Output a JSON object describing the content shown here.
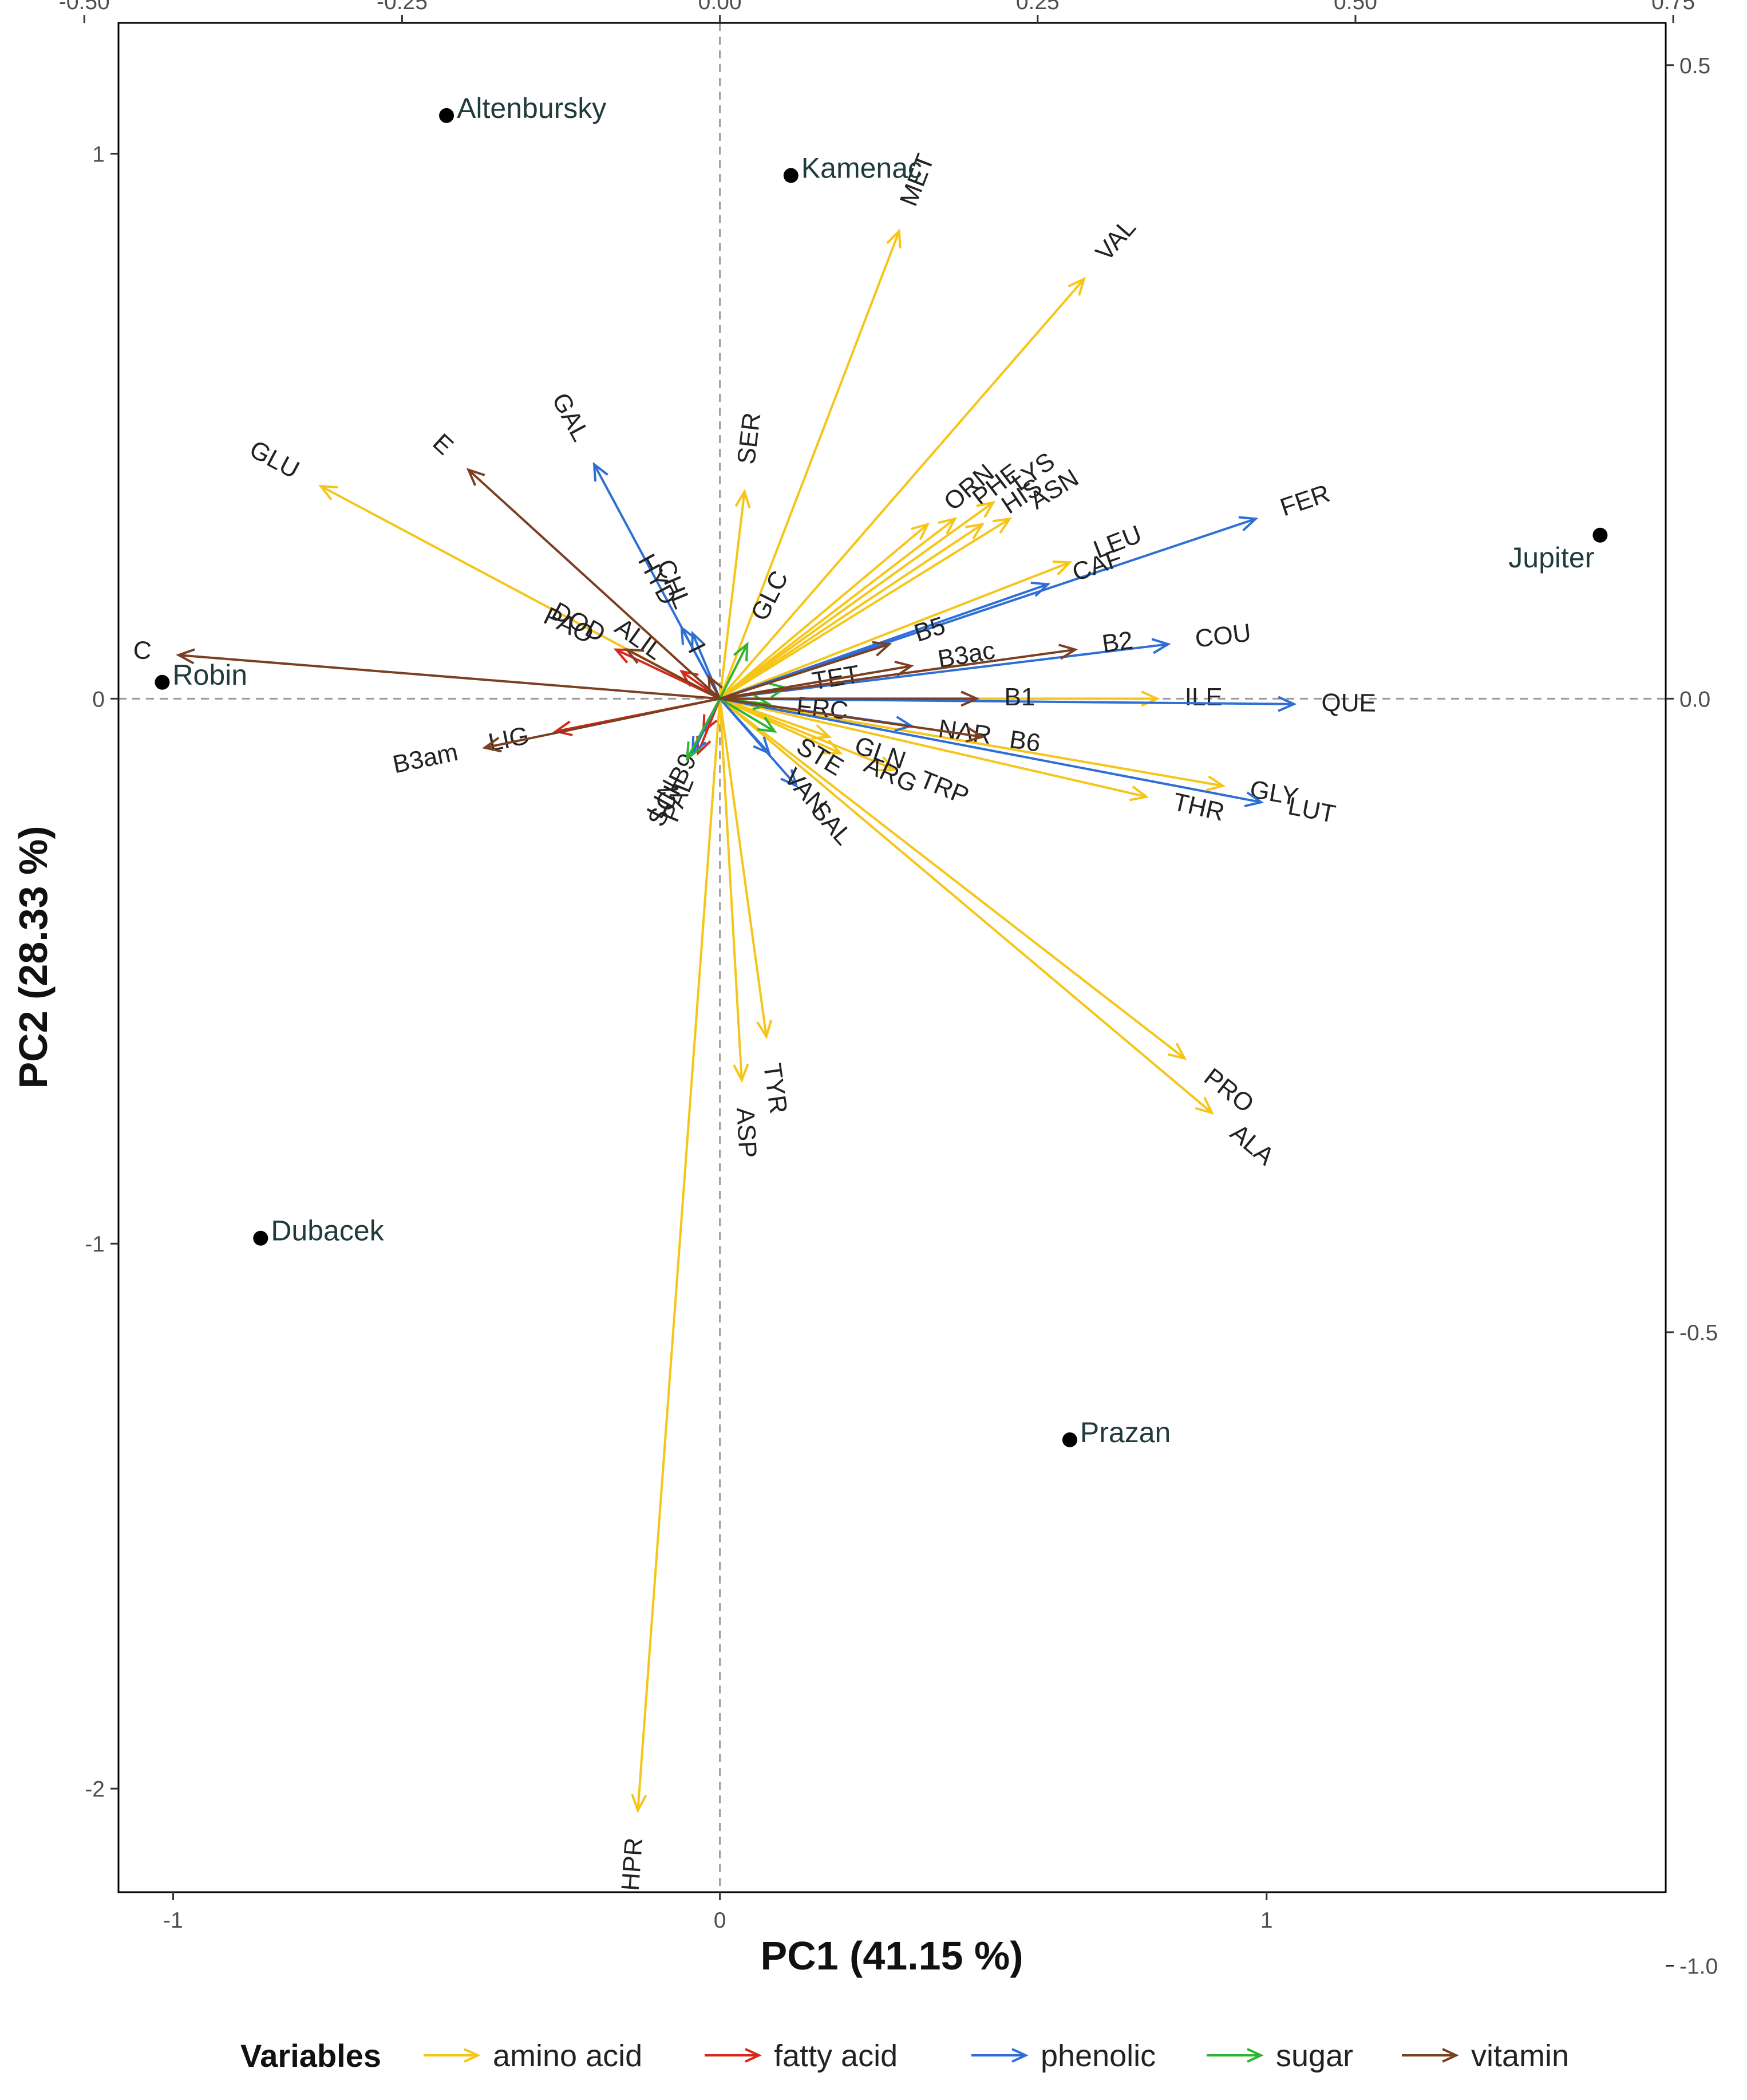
{
  "chart_data": {
    "type": "biplot",
    "xlabel": "PC1 (41.15 %)",
    "ylabel": "PC2 (28.33 %)",
    "xlim": [
      -1.1,
      1.73
    ],
    "ylim": [
      -2.19,
      1.24
    ],
    "x_ticks": [
      "-1",
      "0",
      "1"
    ],
    "y_ticks": [
      "1",
      "0",
      "-1",
      "-2"
    ],
    "top_ticks": [
      "-0.50",
      "-0.25",
      "0.00",
      "0.25",
      "0.50",
      "0.75"
    ],
    "right_ticks": [
      "0.5",
      "0.0",
      "-0.5",
      "-1.0"
    ],
    "legend": {
      "title": "Variables",
      "items": [
        {
          "label": "amino acid",
          "color": "#F5C518"
        },
        {
          "label": "fatty acid",
          "color": "#D6281B"
        },
        {
          "label": "phenolic",
          "color": "#2E6FD6"
        },
        {
          "label": "sugar",
          "color": "#2FB52F"
        },
        {
          "label": "vitamin",
          "color": "#7B3F22"
        }
      ]
    },
    "samples": [
      {
        "name": "Altenbursky",
        "x": -0.5,
        "y": 1.07
      },
      {
        "name": "Kamenac",
        "x": 0.13,
        "y": 0.96
      },
      {
        "name": "Jupiter",
        "x": 1.61,
        "y": 0.3
      },
      {
        "name": "Robin",
        "x": -1.02,
        "y": 0.03
      },
      {
        "name": "Dubacek",
        "x": -0.84,
        "y": -0.99
      },
      {
        "name": "Prazan",
        "x": 0.64,
        "y": -1.36
      }
    ],
    "variables": [
      {
        "name": "MET",
        "group": "amino acid",
        "x": 0.328,
        "y": 0.858
      },
      {
        "name": "VAL",
        "group": "amino acid",
        "x": 0.666,
        "y": 0.77
      },
      {
        "name": "GLU",
        "group": "amino acid",
        "x": -0.73,
        "y": 0.39
      },
      {
        "name": "SER",
        "group": "amino acid",
        "x": 0.045,
        "y": 0.38
      },
      {
        "name": "PHE",
        "group": "amino acid",
        "x": 0.43,
        "y": 0.33
      },
      {
        "name": "LYS",
        "group": "amino acid",
        "x": 0.5,
        "y": 0.36
      },
      {
        "name": "HIS",
        "group": "amino acid",
        "x": 0.48,
        "y": 0.32
      },
      {
        "name": "ASN",
        "group": "amino acid",
        "x": 0.53,
        "y": 0.33
      },
      {
        "name": "LEU",
        "group": "amino acid",
        "x": 0.64,
        "y": 0.25
      },
      {
        "name": "ORN",
        "group": "amino acid",
        "x": 0.38,
        "y": 0.32
      },
      {
        "name": "ILE",
        "group": "amino acid",
        "x": 0.8,
        "y": 0.0
      },
      {
        "name": "GLY",
        "group": "amino acid",
        "x": 0.92,
        "y": -0.16
      },
      {
        "name": "THR",
        "group": "amino acid",
        "x": 0.78,
        "y": -0.18
      },
      {
        "name": "TRP",
        "group": "amino acid",
        "x": 0.32,
        "y": -0.13
      },
      {
        "name": "ARG",
        "group": "amino acid",
        "x": 0.22,
        "y": -0.1
      },
      {
        "name": "GLN",
        "group": "amino acid",
        "x": 0.2,
        "y": -0.07
      },
      {
        "name": "PRO",
        "group": "amino acid",
        "x": 0.85,
        "y": -0.66
      },
      {
        "name": "ALA",
        "group": "amino acid",
        "x": 0.9,
        "y": -0.76
      },
      {
        "name": "TYR",
        "group": "amino acid",
        "x": 0.085,
        "y": -0.62
      },
      {
        "name": "ASP",
        "group": "amino acid",
        "x": 0.04,
        "y": -0.7
      },
      {
        "name": "HPR",
        "group": "amino acid",
        "x": -0.15,
        "y": -2.04
      },
      {
        "name": "PAO",
        "group": "fatty acid",
        "x": -0.19,
        "y": 0.09
      },
      {
        "name": "ALIL",
        "group": "fatty acid",
        "x": -0.07,
        "y": 0.05
      },
      {
        "name": "LIG",
        "group": "fatty acid",
        "x": -0.3,
        "y": -0.06
      },
      {
        "name": "B9",
        "group": "fatty acid",
        "x": -0.03,
        "y": -0.06
      },
      {
        "name": "PAL",
        "group": "fatty acid",
        "x": -0.04,
        "y": -0.1
      },
      {
        "name": "GAL",
        "group": "phenolic",
        "x": -0.23,
        "y": 0.43
      },
      {
        "name": "HYD",
        "group": "phenolic",
        "x": -0.07,
        "y": 0.13
      },
      {
        "name": "CHL",
        "group": "phenolic",
        "x": -0.05,
        "y": 0.12
      },
      {
        "name": "FER",
        "group": "phenolic",
        "x": 0.98,
        "y": 0.33
      },
      {
        "name": "CAF",
        "group": "phenolic",
        "x": 0.6,
        "y": 0.21
      },
      {
        "name": "COU",
        "group": "phenolic",
        "x": 0.82,
        "y": 0.1
      },
      {
        "name": "QUE",
        "group": "phenolic",
        "x": 1.05,
        "y": -0.01
      },
      {
        "name": "LUT",
        "group": "phenolic",
        "x": 0.99,
        "y": -0.19
      },
      {
        "name": "NAR",
        "group": "phenolic",
        "x": 0.35,
        "y": -0.05
      },
      {
        "name": "SAL",
        "group": "phenolic",
        "x": 0.14,
        "y": -0.16
      },
      {
        "name": "VAN",
        "group": "phenolic",
        "x": 0.09,
        "y": -0.1
      },
      {
        "name": "SCH",
        "group": "phenolic",
        "x": -0.05,
        "y": -0.1
      },
      {
        "name": "TET",
        "group": "sugar",
        "x": 0.12,
        "y": 0.02
      },
      {
        "name": "GLC",
        "group": "sugar",
        "x": 0.05,
        "y": 0.1
      },
      {
        "name": "FRC",
        "group": "sugar",
        "x": 0.09,
        "y": -0.01
      },
      {
        "name": "STE",
        "group": "sugar",
        "x": 0.1,
        "y": -0.06
      },
      {
        "name": "LIN",
        "group": "sugar",
        "x": -0.06,
        "y": -0.11
      },
      {
        "name": "C",
        "group": "vitamin",
        "x": -0.99,
        "y": 0.08
      },
      {
        "name": "E",
        "group": "vitamin",
        "x": -0.46,
        "y": 0.42
      },
      {
        "name": "DOD",
        "group": "vitamin",
        "x": -0.17,
        "y": 0.09
      },
      {
        "name": "B3am",
        "group": "vitamin",
        "x": -0.43,
        "y": -0.09
      },
      {
        "name": "B5",
        "group": "vitamin",
        "x": 0.31,
        "y": 0.1
      },
      {
        "name": "B3ac",
        "group": "vitamin",
        "x": 0.35,
        "y": 0.06
      },
      {
        "name": "B2",
        "group": "vitamin",
        "x": 0.65,
        "y": 0.09
      },
      {
        "name": "B1",
        "group": "vitamin",
        "x": 0.47,
        "y": 0.0
      },
      {
        "name": "B6",
        "group": "vitamin",
        "x": 0.48,
        "y": -0.07
      },
      {
        "name": "I",
        "group": "vitamin",
        "x": -0.02,
        "y": 0.04
      }
    ]
  }
}
